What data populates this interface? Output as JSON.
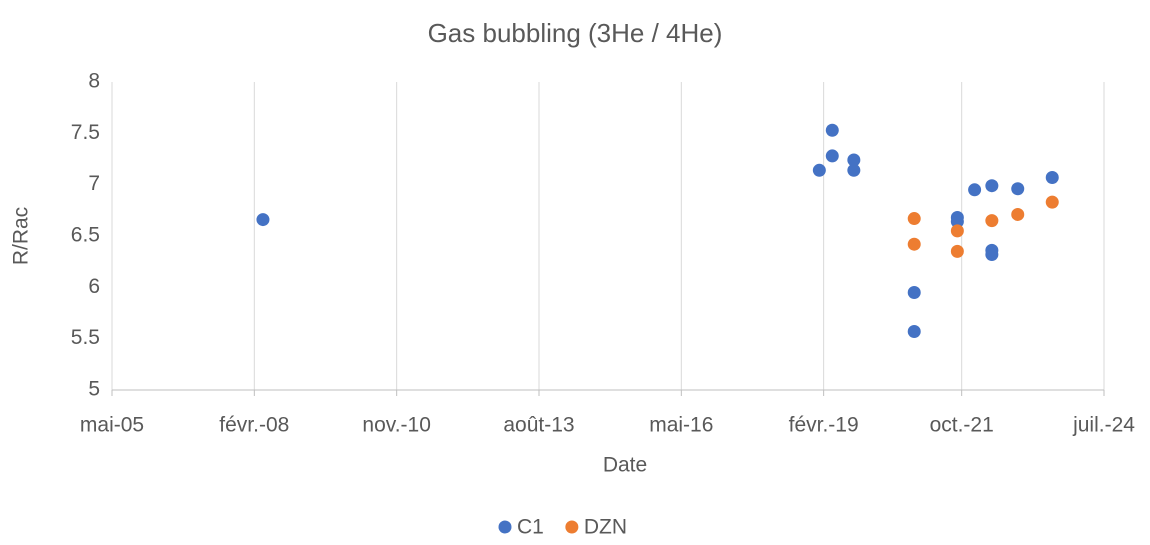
{
  "chart_data": {
    "type": "scatter",
    "title": "Gas bubbling (3He / 4He)",
    "x_label": "Date",
    "y_label": "R/Rac",
    "xlim": [
      "2005-05",
      "2024-07"
    ],
    "ylim": [
      5,
      8
    ],
    "xticks": [
      {
        "value": "2005-05",
        "label": "mai-05"
      },
      {
        "value": "2008-02",
        "label": "févr.-08"
      },
      {
        "value": "2010-11",
        "label": "nov.-10"
      },
      {
        "value": "2013-08",
        "label": "août-13"
      },
      {
        "value": "2016-05",
        "label": "mai-16"
      },
      {
        "value": "2019-02",
        "label": "févr.-19"
      },
      {
        "value": "2021-10",
        "label": "oct.-21"
      },
      {
        "value": "2024-07",
        "label": "juil.-24"
      }
    ],
    "yticks": [
      5,
      5.5,
      6,
      6.5,
      7,
      7.5,
      8
    ],
    "grid": "x",
    "legend": "bottom",
    "series": [
      {
        "name": "C1",
        "color": "#4472c4",
        "x": [
          "2008-04",
          "2019-01",
          "2019-04",
          "2019-04",
          "2019-09",
          "2019-09",
          "2020-11",
          "2020-11",
          "2021-09",
          "2021-09",
          "2022-01",
          "2022-05",
          "2022-05",
          "2022-05",
          "2022-11",
          "2023-07"
        ],
        "values": [
          6.66,
          7.14,
          7.53,
          7.28,
          7.24,
          7.14,
          5.95,
          5.57,
          6.68,
          6.64,
          6.95,
          6.99,
          6.36,
          6.32,
          6.96,
          7.07
        ]
      },
      {
        "name": "DZN",
        "color": "#ed7d31",
        "x": [
          "2020-11",
          "2020-11",
          "2021-09",
          "2021-09",
          "2022-05",
          "2022-11",
          "2023-07"
        ],
        "values": [
          6.67,
          6.42,
          6.55,
          6.35,
          6.65,
          6.71,
          6.83
        ]
      }
    ]
  }
}
